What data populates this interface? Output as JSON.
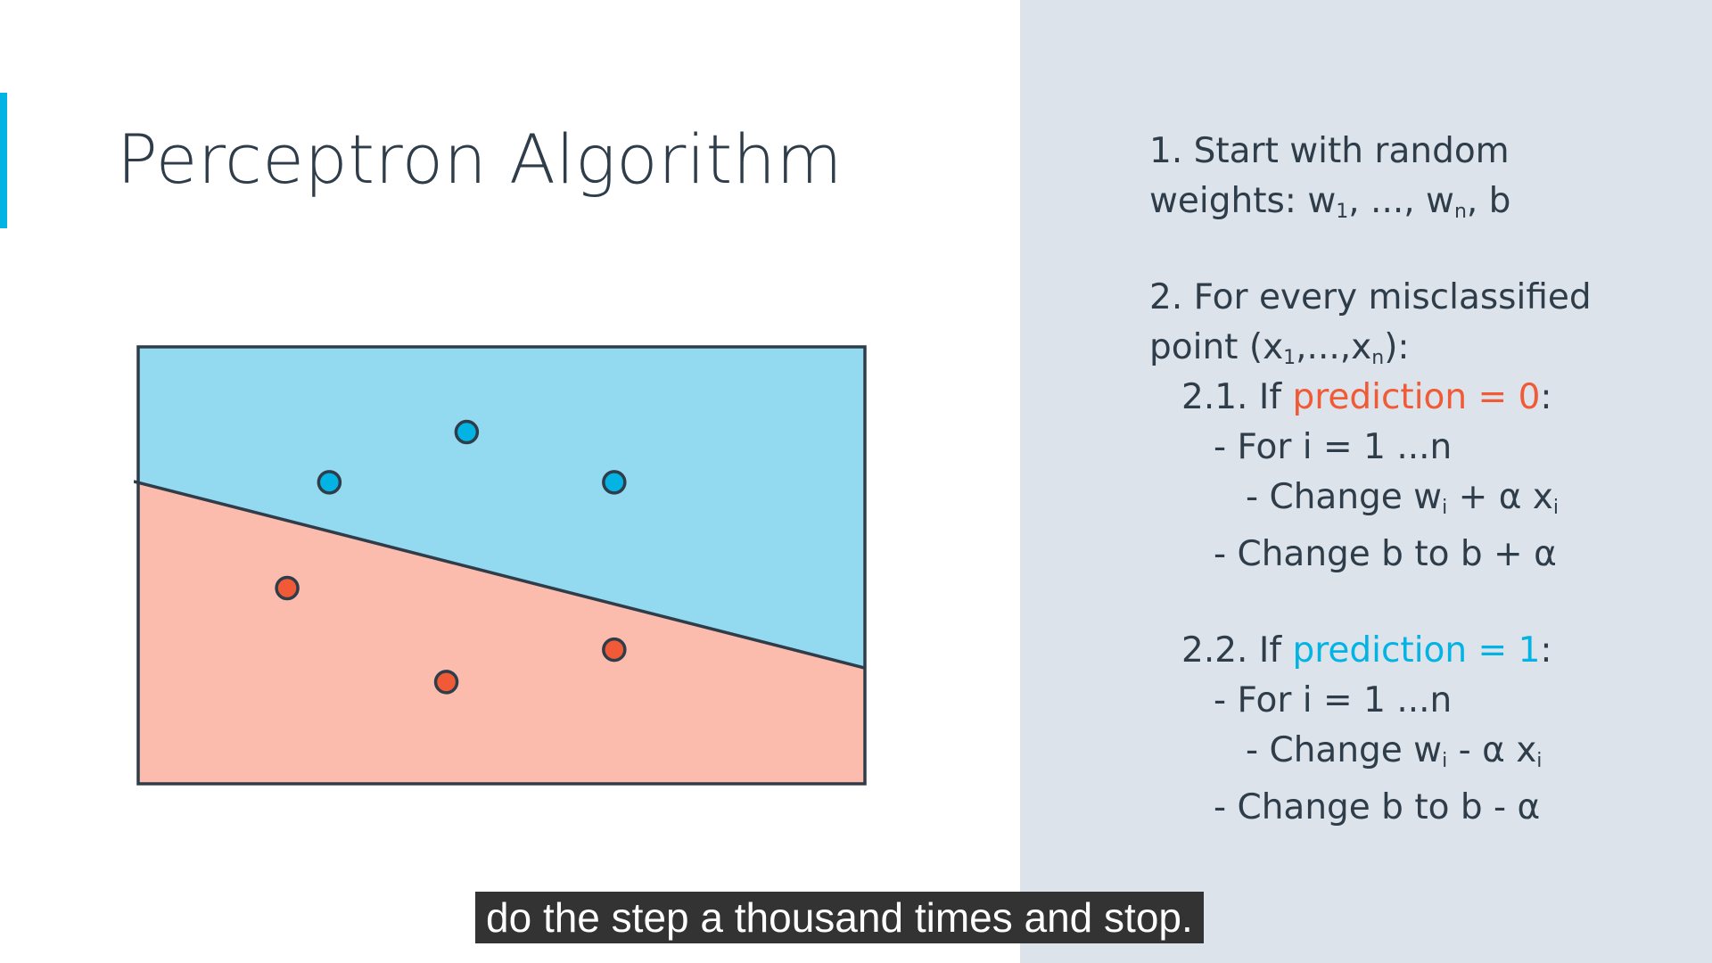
{
  "slide": {
    "title": "Perceptron Algorithm"
  },
  "algorithm": {
    "step1_line1": "1. Start with random",
    "step1_line2": [
      "weights: w",
      "1",
      ", ..., w",
      "n",
      ", b"
    ],
    "step2_line1": "2. For every misclassified",
    "step2_line2": [
      "point (x",
      "1",
      ",...,x",
      "n",
      "):"
    ],
    "case1": {
      "prefix": "2.1. If ",
      "condition": "prediction = 0",
      "suffix": ":"
    },
    "case1_for": "- For i = 1 ...n",
    "case1_change_w": [
      "- Change w",
      "i",
      " + α x",
      "i"
    ],
    "case1_change_b": "- Change b to b + α",
    "case2": {
      "prefix": "2.2. If ",
      "condition": "prediction = 1",
      "suffix": ":"
    },
    "case2_for": "- For i = 1 ...n",
    "case2_change_w": [
      "- Change w",
      "i",
      " - α x",
      "i"
    ],
    "case2_change_b": "- Change b to b - α"
  },
  "colors": {
    "accent": "#02b3e4",
    "blue_region": "#93d9ef",
    "red_region": "#fbbcae",
    "blue_point": "#02b3e4",
    "red_point": "#f05a36",
    "outline": "#2e3d49",
    "panel": "#dce3ea"
  },
  "diagram": {
    "boundary_line": {
      "start": [
        0,
        0.31
      ],
      "end": [
        1,
        0.735
      ]
    },
    "points": [
      {
        "class": "blue",
        "x": 0.452,
        "y": 0.195
      },
      {
        "class": "blue",
        "x": 0.263,
        "y": 0.31
      },
      {
        "class": "blue",
        "x": 0.655,
        "y": 0.31
      },
      {
        "class": "red",
        "x": 0.205,
        "y": 0.552
      },
      {
        "class": "red",
        "x": 0.424,
        "y": 0.767
      },
      {
        "class": "red",
        "x": 0.655,
        "y": 0.693
      }
    ]
  },
  "caption": {
    "text": "do the step a thousand times and stop."
  }
}
